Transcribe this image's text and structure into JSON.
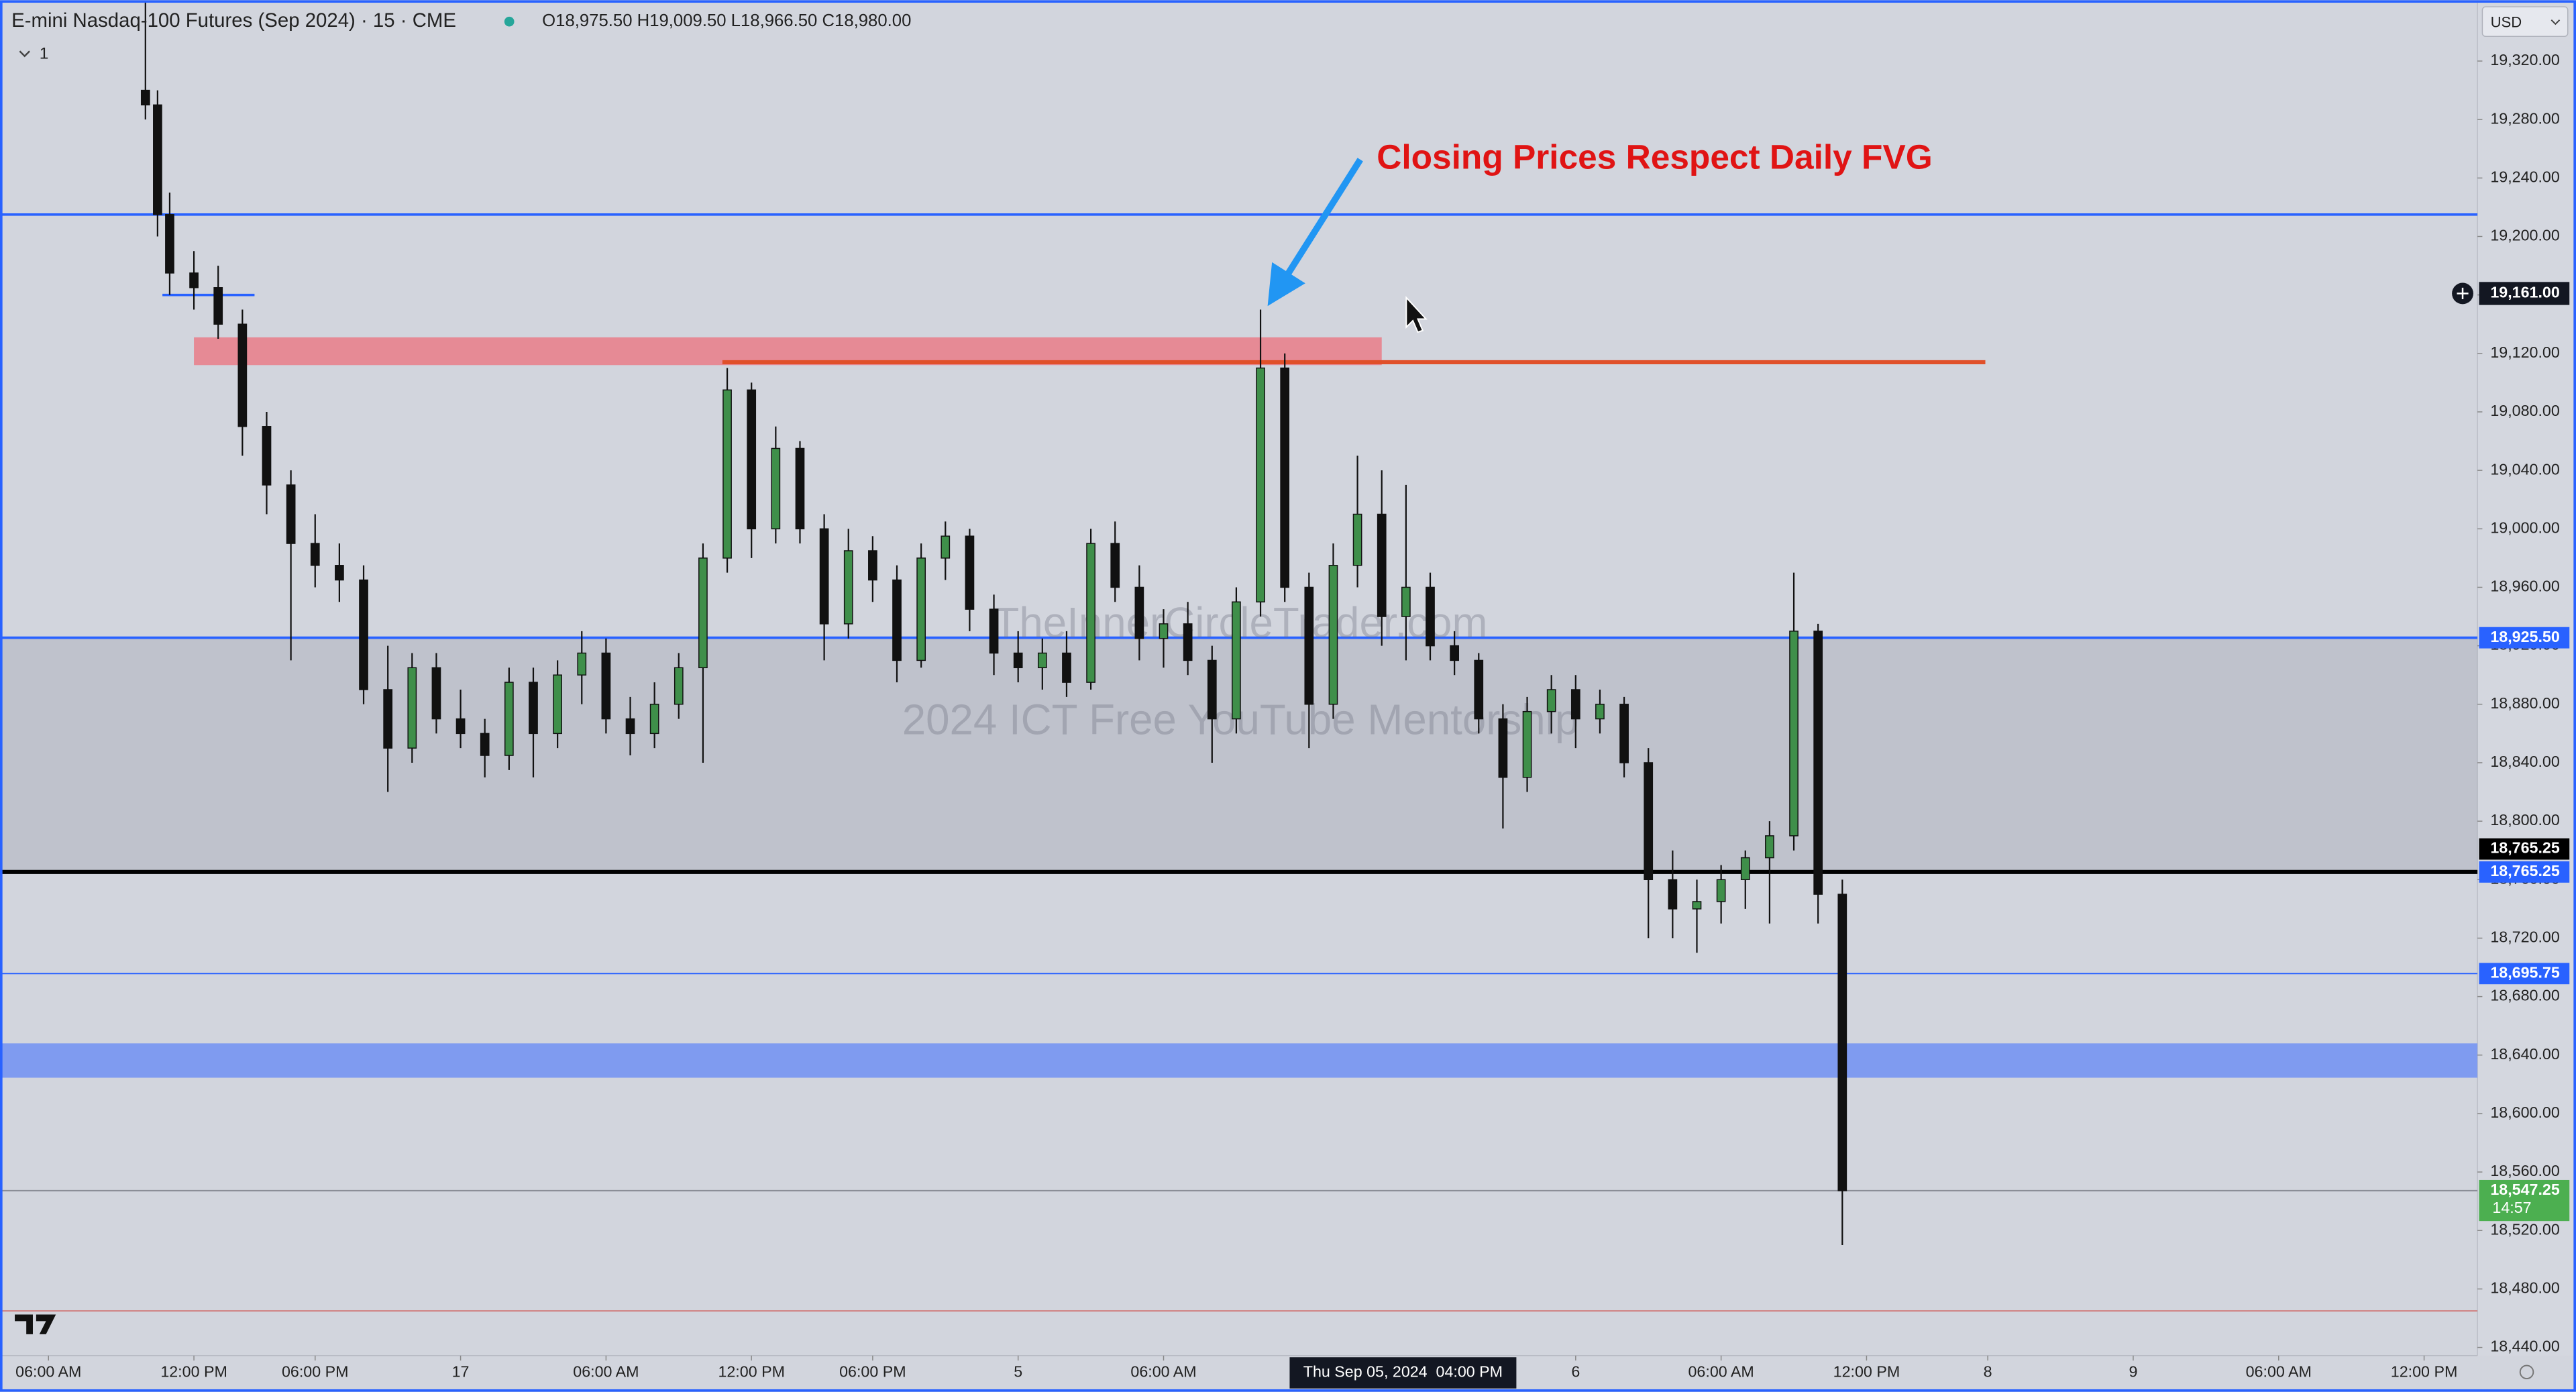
{
  "chart_data": {
    "type": "candlestick",
    "title": "E-mini Nasdaq-100 Futures (Sep 2024) · 15 · CME",
    "quote": "O18,975.50 H19,009.50 L18,966.50 C18,980.00",
    "collapsed_indicators": "1",
    "currency": "USD",
    "annotation": {
      "text": "Closing Prices Respect Daily FVG",
      "color": "#e01414"
    },
    "watermark": [
      "TheInnerCircleTrader.com",
      "2024 ICT Free YouTube Mentorship"
    ],
    "crosshair": {
      "x_label": "Thu Sep 05, 2024  04:00 PM",
      "price": {
        "value": 19161,
        "label": "19,161.00"
      }
    },
    "last_price": {
      "value": 18547.25,
      "label": "18,547.25",
      "countdown": "14:57",
      "color": "#4caf50"
    },
    "up_color": "#3f8f4a",
    "down_color": "#111111",
    "grid": false,
    "xlim": [
      -2,
      100.2
    ],
    "ylim": [
      18434.4,
      19361.6
    ],
    "xticks": [
      {
        "value": 0,
        "label": "06:00 AM"
      },
      {
        "value": 6,
        "label": "12:00 PM"
      },
      {
        "value": 11,
        "label": "06:00 PM"
      },
      17,
      {
        "value": 23,
        "label": "06:00 AM"
      },
      {
        "value": 29,
        "label": "12:00 PM"
      },
      {
        "value": 34,
        "label": "06:00 PM"
      },
      {
        "value": 40,
        "label": "5"
      },
      {
        "value": 46,
        "label": "06:00 AM"
      },
      {
        "value": 63,
        "label": "6"
      },
      {
        "value": 69,
        "label": "06:00 AM"
      },
      {
        "value": 75,
        "label": "12:00 PM"
      },
      {
        "value": 80,
        "label": "8"
      },
      {
        "value": 86,
        "label": "9"
      },
      {
        "value": 92,
        "label": "06:00 AM"
      },
      {
        "value": 98,
        "label": "12:00 PM"
      }
    ],
    "yticks": [
      {
        "value": 18440,
        "label": "18,440.00"
      },
      {
        "value": 18480,
        "label": "18,480.00"
      },
      {
        "value": 18520,
        "label": "18,520.00"
      },
      {
        "value": 18560,
        "label": "18,560.00"
      },
      {
        "value": 18600,
        "label": "18,600.00"
      },
      {
        "value": 18640,
        "label": "18,640.00"
      },
      {
        "value": 18680,
        "label": "18,680.00"
      },
      {
        "value": 18720,
        "label": "18,720.00"
      },
      {
        "value": 18760,
        "label": "18,760.00"
      },
      {
        "value": 18800,
        "label": "18,800.00"
      },
      {
        "value": 18840,
        "label": "18,840.00"
      },
      {
        "value": 18880,
        "label": "18,880.00"
      },
      {
        "value": 18920,
        "label": "18,920.00"
      },
      {
        "value": 18960,
        "label": "18,960.00"
      },
      {
        "value": 19000,
        "label": "19,000.00"
      },
      {
        "value": 19040,
        "label": "19,040.00"
      },
      {
        "value": 19080,
        "label": "19,080.00"
      },
      {
        "value": 19120,
        "label": "19,120.00"
      },
      {
        "value": 19160,
        "label": "19,160.00"
      },
      {
        "value": 19200,
        "label": "19,200.00"
      },
      {
        "value": 19240,
        "label": "19,240.00"
      },
      {
        "value": 19280,
        "label": "19,280.00"
      },
      {
        "value": 19320,
        "label": "19,320.00"
      }
    ],
    "zones": [
      {
        "from": 18765.25,
        "to": 18925.5,
        "color": "rgba(150,153,166,0.3)"
      },
      {
        "from": 19112,
        "to": 19131,
        "x_from": 6,
        "x_to": 55,
        "color": "rgba(236,112,124,0.75)"
      },
      {
        "from": 18624.5,
        "to": 18648,
        "color": "#7f9bf0"
      }
    ],
    "levels": [
      {
        "value": 19215,
        "color": "#2962ff",
        "width": 1.5
      },
      {
        "value": 18925.5,
        "label": "18,925.50",
        "color": "#2962ff",
        "width": 1.5
      },
      {
        "value": 18765.25,
        "label": "18,765.25",
        "color": "#2962ff",
        "width": 1
      },
      {
        "value": 18765.25,
        "label": "18,765.25",
        "color": "#000000",
        "width": 2.5
      },
      {
        "value": 18695.75,
        "label": "18,695.75",
        "color": "#2962ff",
        "width": 0.8
      },
      {
        "value": 18465,
        "color": "#d08080",
        "width": 0.8
      }
    ],
    "segments": [
      {
        "value": 19114,
        "x_from": 27.8,
        "x_to": 79.9,
        "color": "#e0502a",
        "width": 2.5
      },
      {
        "value": 19160,
        "x_from": 4.7,
        "x_to": 8.5,
        "color": "#2962ff",
        "width": 1.5
      }
    ],
    "x": [
      4,
      4.5,
      5,
      6,
      7,
      8,
      9,
      10,
      11,
      12,
      13,
      14,
      15,
      16,
      17,
      18,
      19,
      20,
      21,
      22,
      23,
      24,
      25,
      26,
      27,
      28,
      29,
      30,
      31,
      32,
      33,
      34,
      35,
      36,
      37,
      38,
      39,
      40,
      41,
      42,
      43,
      44,
      45,
      46,
      47,
      48,
      49,
      50,
      51,
      52,
      53,
      54,
      55,
      56,
      57,
      58,
      59,
      60,
      61,
      62,
      63,
      64,
      65,
      66,
      67,
      68,
      69,
      70,
      71,
      72,
      73,
      74
    ],
    "open": [
      19300,
      19290,
      19215,
      19175,
      19165,
      19140,
      19070,
      19030,
      18990,
      18975,
      18965,
      18890,
      18850,
      18905,
      18870,
      18860,
      18845,
      18895,
      18860,
      18900,
      18915,
      18870,
      18860,
      18880,
      18905,
      18980,
      19095,
      19000,
      19055,
      19000,
      18935,
      18985,
      18965,
      18910,
      18980,
      18995,
      18945,
      18915,
      18905,
      18915,
      18895,
      18990,
      18960,
      18925,
      18935,
      18910,
      18870,
      18950,
      19110,
      18960,
      18880,
      18975,
      19010,
      18940,
      18960,
      18920,
      18910,
      18870,
      18830,
      18875,
      18890,
      18870,
      18880,
      18840,
      18760,
      18740,
      18745,
      18760,
      18775,
      18790,
      18930,
      18750
    ],
    "high": [
      19360,
      19300,
      19230,
      19190,
      19180,
      19150,
      19080,
      19040,
      19010,
      18990,
      18975,
      18920,
      18915,
      18915,
      18890,
      18870,
      18905,
      18905,
      18910,
      18930,
      18925,
      18885,
      18895,
      18915,
      18990,
      19110,
      19100,
      19070,
      19060,
      19010,
      19000,
      18995,
      18975,
      18990,
      19005,
      19000,
      18955,
      18930,
      18925,
      18930,
      19000,
      19005,
      18975,
      18945,
      18950,
      18920,
      18960,
      19150,
      19120,
      18970,
      18990,
      19050,
      19040,
      19030,
      18970,
      18930,
      18915,
      18880,
      18885,
      18900,
      18900,
      18890,
      18885,
      18850,
      18780,
      18760,
      18770,
      18780,
      18800,
      18970,
      18935,
      18760
    ],
    "low": [
      19280,
      19200,
      19160,
      19150,
      19130,
      19050,
      19010,
      18910,
      18960,
      18950,
      18880,
      18820,
      18840,
      18860,
      18850,
      18830,
      18835,
      18830,
      18850,
      18880,
      18860,
      18845,
      18850,
      18870,
      18840,
      18970,
      18980,
      18990,
      18990,
      18910,
      18925,
      18950,
      18895,
      18905,
      18965,
      18930,
      18900,
      18895,
      18890,
      18885,
      18890,
      18950,
      18910,
      18905,
      18900,
      18840,
      18860,
      18940,
      18950,
      18850,
      18870,
      18960,
      18920,
      18910,
      18910,
      18900,
      18860,
      18795,
      18820,
      18860,
      18850,
      18860,
      18830,
      18720,
      18720,
      18710,
      18730,
      18740,
      18730,
      18780,
      18730,
      18510
    ],
    "close": [
      19290,
      19215,
      19175,
      19165,
      19140,
      19070,
      19030,
      18990,
      18975,
      18965,
      18890,
      18850,
      18905,
      18870,
      18860,
      18845,
      18895,
      18860,
      18900,
      18915,
      18870,
      18860,
      18880,
      18905,
      18980,
      19095,
      19000,
      19055,
      19000,
      18935,
      18985,
      18965,
      18910,
      18980,
      18995,
      18945,
      18915,
      18905,
      18915,
      18895,
      18990,
      18960,
      18925,
      18935,
      18910,
      18870,
      18950,
      19110,
      18960,
      18880,
      18975,
      19010,
      18940,
      18960,
      18920,
      18910,
      18870,
      18830,
      18875,
      18890,
      18870,
      18880,
      18840,
      18760,
      18740,
      18745,
      18760,
      18775,
      18790,
      18930,
      18750,
      18547.25
    ]
  }
}
